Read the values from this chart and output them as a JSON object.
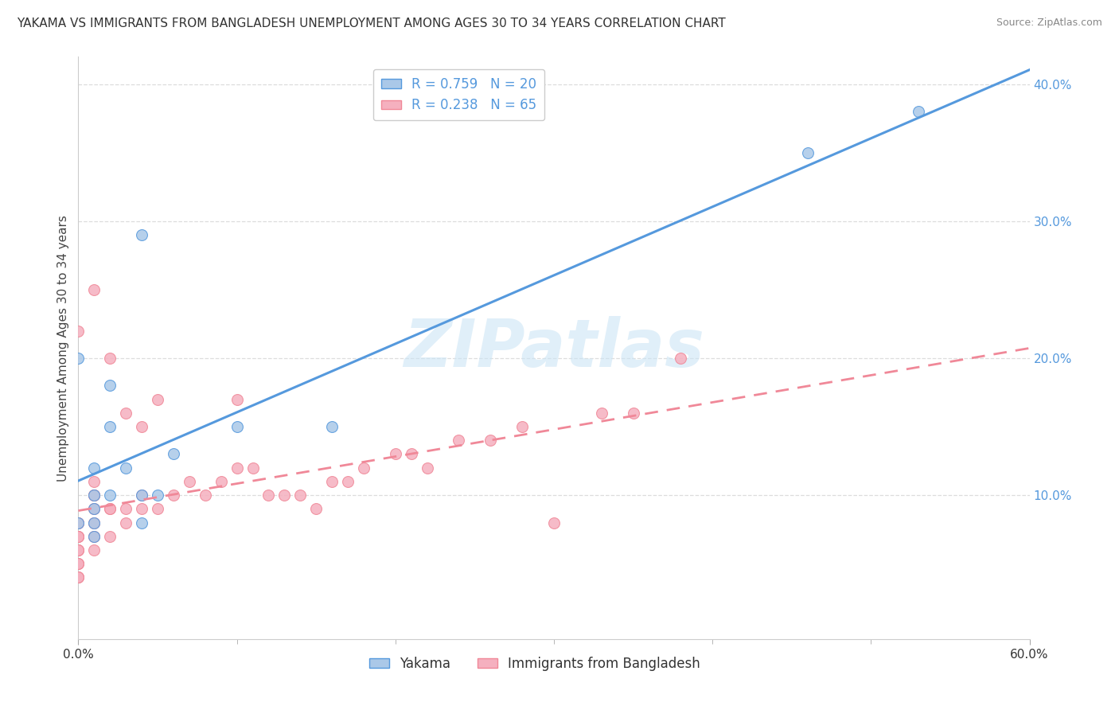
{
  "title": "YAKAMA VS IMMIGRANTS FROM BANGLADESH UNEMPLOYMENT AMONG AGES 30 TO 34 YEARS CORRELATION CHART",
  "source": "Source: ZipAtlas.com",
  "ylabel": "Unemployment Among Ages 30 to 34 years",
  "watermark": "ZIPatlas",
  "yakama_R": 0.759,
  "yakama_N": 20,
  "bangladesh_R": 0.238,
  "bangladesh_N": 65,
  "yakama_color": "#aac8e8",
  "bangladesh_color": "#f5b0bf",
  "yakama_line_color": "#5599dd",
  "bangladesh_line_color": "#f08898",
  "xlim": [
    0.0,
    0.6
  ],
  "ylim": [
    -0.005,
    0.42
  ],
  "yticks": [
    0.1,
    0.2,
    0.3,
    0.4
  ],
  "ytick_labels": [
    "10.0%",
    "20.0%",
    "30.0%",
    "40.0%"
  ],
  "yakama_x": [
    0.0,
    0.0,
    0.01,
    0.01,
    0.01,
    0.01,
    0.01,
    0.02,
    0.02,
    0.02,
    0.03,
    0.04,
    0.04,
    0.04,
    0.05,
    0.06,
    0.1,
    0.46,
    0.53,
    0.16
  ],
  "yakama_y": [
    0.2,
    0.08,
    0.1,
    0.08,
    0.09,
    0.12,
    0.07,
    0.1,
    0.15,
    0.18,
    0.12,
    0.29,
    0.08,
    0.1,
    0.1,
    0.13,
    0.15,
    0.35,
    0.38,
    0.15
  ],
  "bangladesh_x": [
    0.0,
    0.0,
    0.0,
    0.0,
    0.0,
    0.0,
    0.0,
    0.0,
    0.0,
    0.0,
    0.0,
    0.0,
    0.0,
    0.0,
    0.0,
    0.0,
    0.0,
    0.01,
    0.01,
    0.01,
    0.01,
    0.01,
    0.01,
    0.01,
    0.01,
    0.01,
    0.01,
    0.01,
    0.01,
    0.02,
    0.02,
    0.02,
    0.02,
    0.03,
    0.03,
    0.03,
    0.04,
    0.04,
    0.04,
    0.05,
    0.05,
    0.06,
    0.07,
    0.08,
    0.09,
    0.1,
    0.1,
    0.11,
    0.12,
    0.13,
    0.14,
    0.15,
    0.16,
    0.17,
    0.18,
    0.2,
    0.21,
    0.22,
    0.24,
    0.26,
    0.28,
    0.3,
    0.33,
    0.35,
    0.38
  ],
  "bangladesh_y": [
    0.04,
    0.04,
    0.04,
    0.05,
    0.05,
    0.05,
    0.06,
    0.06,
    0.06,
    0.07,
    0.07,
    0.07,
    0.07,
    0.08,
    0.08,
    0.08,
    0.22,
    0.06,
    0.07,
    0.07,
    0.08,
    0.08,
    0.09,
    0.09,
    0.1,
    0.1,
    0.1,
    0.11,
    0.25,
    0.07,
    0.09,
    0.09,
    0.2,
    0.08,
    0.09,
    0.16,
    0.09,
    0.1,
    0.15,
    0.09,
    0.17,
    0.1,
    0.11,
    0.1,
    0.11,
    0.12,
    0.17,
    0.12,
    0.1,
    0.1,
    0.1,
    0.09,
    0.11,
    0.11,
    0.12,
    0.13,
    0.13,
    0.12,
    0.14,
    0.14,
    0.15,
    0.08,
    0.16,
    0.16,
    0.2
  ],
  "grid_color": "#dddddd",
  "background_color": "#ffffff",
  "title_fontsize": 11,
  "axis_label_fontsize": 11,
  "tick_fontsize": 11,
  "legend_fontsize": 12,
  "watermark_fontsize": 60,
  "watermark_color": "#cce5f5",
  "watermark_alpha": 0.6,
  "tick_color": "#5599dd"
}
